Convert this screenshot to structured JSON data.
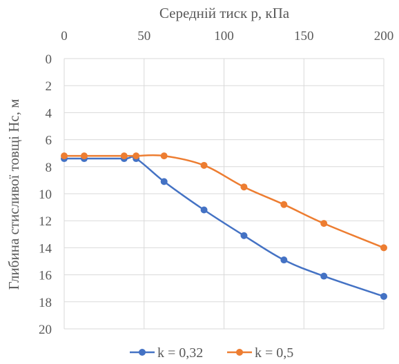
{
  "chart_data": {
    "type": "line",
    "xlabel": "Середній тиск p, кПа",
    "ylabel": "Глибина стисливої товщі Hc, м",
    "xlim": [
      0,
      200
    ],
    "ylim": [
      0,
      20
    ],
    "x_axis_position": "top",
    "y_axis_inverted": true,
    "xticks": [
      0,
      50,
      100,
      150,
      200
    ],
    "yticks": [
      0,
      2,
      4,
      6,
      8,
      10,
      12,
      14,
      16,
      18,
      20
    ],
    "grid": true,
    "legend_position": "bottom",
    "series": [
      {
        "name": "k = 0,32",
        "color": "#4472c4",
        "x": [
          0,
          12.5,
          37.5,
          45,
          62.5,
          87.5,
          112.5,
          137.5,
          162.5,
          200
        ],
        "y": [
          7.4,
          7.4,
          7.4,
          7.4,
          9.1,
          11.2,
          13.1,
          14.9,
          16.1,
          17.6
        ]
      },
      {
        "name": "k = 0,5",
        "color": "#ed7d31",
        "x": [
          0,
          12.5,
          37.5,
          45,
          62.5,
          87.5,
          112.5,
          137.5,
          162.5,
          200
        ],
        "y": [
          7.2,
          7.2,
          7.2,
          7.2,
          7.2,
          7.9,
          9.5,
          10.8,
          12.2,
          14.0
        ]
      }
    ]
  }
}
